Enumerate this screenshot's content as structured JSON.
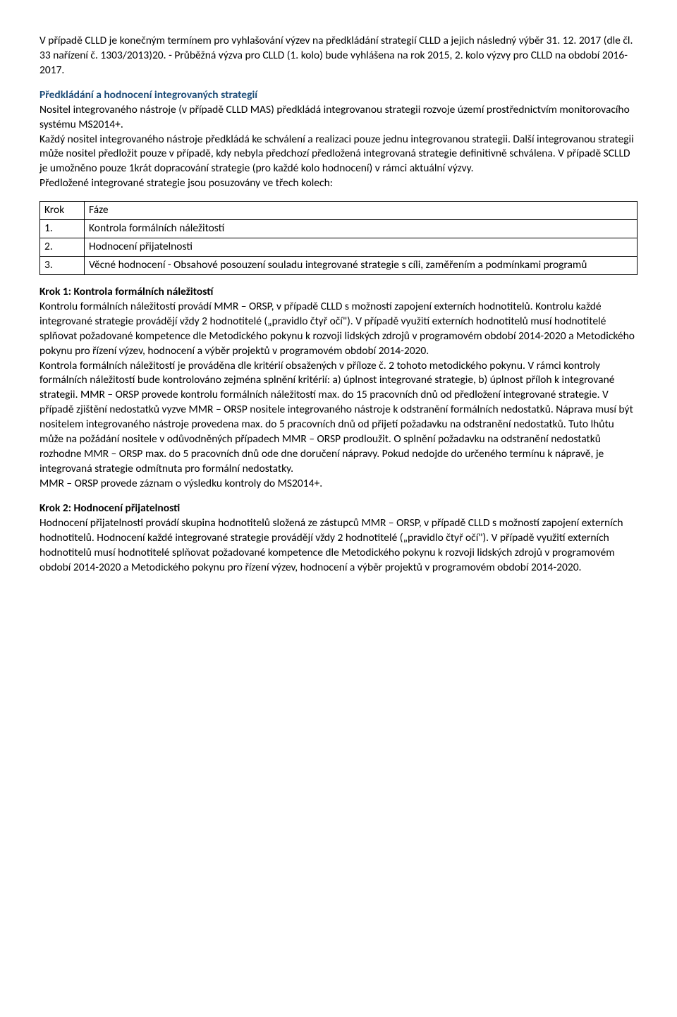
{
  "p1": "V případě CLLD je konečným termínem pro vyhlašování výzev na předkládání strategií CLLD a jejich následný výběr 31. 12. 2017 (dle čl. 33 nařízení č. 1303/2013)20. - Průběžná výzva pro CLLD (1. kolo) bude vyhlášena na rok 2015, 2. kolo výzvy pro CLLD na období 2016-2017.",
  "h1": "Předkládání a hodnocení integrovaných strategií",
  "p2a": "Nositel integrovaného nástroje (v případě CLLD MAS)  předkládá integrovanou strategii rozvoje území prostřednictvím monitorovacího systému MS2014+.",
  "p2b": "Každý nositel integrovaného nástroje předkládá ke schválení a realizaci pouze jednu integrovanou strategii. Další integrovanou strategii může nositel předložit pouze v případě, kdy nebyla předchozí předložená integrovaná strategie definitivně schválena. V případě SCLLD je umožněno pouze 1krát dopracování strategie (pro každé kolo hodnocení) v rámci aktuální výzvy.",
  "p2c": "Předložené integrované strategie jsou posuzovány ve třech kolech:",
  "table": {
    "r0c0": "Krok",
    "r0c1": "Fáze",
    "r1c0": "1.",
    "r1c1": "Kontrola formálních náležitostí",
    "r2c0": "2.",
    "r2c1": "Hodnocení přijatelnosti",
    "r3c0": "3.",
    "r3c1": "Věcné hodnocení - Obsahové posouzení souladu integrované strategie s cíli, zaměřením a podmínkami programů"
  },
  "h2": "Krok 1:  Kontrola formálních náležitostí",
  "p3a": "Kontrolu formálních náležitostí provádí MMR – ORSP, v případě CLLD s možností zapojení externích hodnotitelů. Kontrolu každé integrované strategie provádějí vždy 2 hodnotitelé („pravidlo čtyř očí\"). V případě využití externích hodnotitelů musí hodnotitelé splňovat požadované kompetence dle Metodického pokynu k rozvoji lidských zdrojů v programovém období 2014-2020 a Metodického pokynu pro řízení výzev, hodnocení a výběr projektů v programovém období 2014-2020.",
  "p3b": "Kontrola formálních náležitostí je prováděna dle kritérií obsažených v příloze č. 2 tohoto metodického pokynu. V rámci kontroly formálních náležitostí bude kontrolováno zejména splnění kritérií: a) úplnost integrované strategie, b) úplnost příloh k integrované strategii. MMR – ORSP provede kontrolu formálních náležitostí max. do 15 pracovních dnů od předložení integrované strategie. V případě zjištění nedostatků vyzve MMR – ORSP nositele integrovaného nástroje k odstranění formálních nedostatků. Náprava musí být nositelem integrovaného nástroje provedena max. do 5 pracovních dnů od přijetí požadavku na odstranění nedostatků. Tuto lhůtu může na požádání nositele v odůvodněných případech MMR – ORSP prodloužit. O splnění požadavku na odstranění nedostatků rozhodne MMR – ORSP max. do 5 pracovních dnů ode dne doručení nápravy. Pokud nedojde do určeného termínu k nápravě, je integrovaná strategie odmítnuta pro formální nedostatky.",
  "p3c": "MMR – ORSP provede záznam o výsledku kontroly do MS2014+.",
  "h3": "Krok 2: Hodnocení přijatelnosti",
  "p4": "Hodnocení přijatelnosti provádí skupina hodnotitelů složená ze zástupců MMR – ORSP, v případě CLLD s možností zapojení externích hodnotitelů. Hodnocení každé integrované strategie provádějí vždy 2 hodnotitelé („pravidlo čtyř očí\"). V případě využití externích hodnotitelů musí hodnotitelé splňovat požadované kompetence dle Metodického pokynu k rozvoji lidských zdrojů v programovém období 2014-2020 a Metodického pokynu pro řízení výzev, hodnocení a výběr projektů v programovém období 2014-2020."
}
